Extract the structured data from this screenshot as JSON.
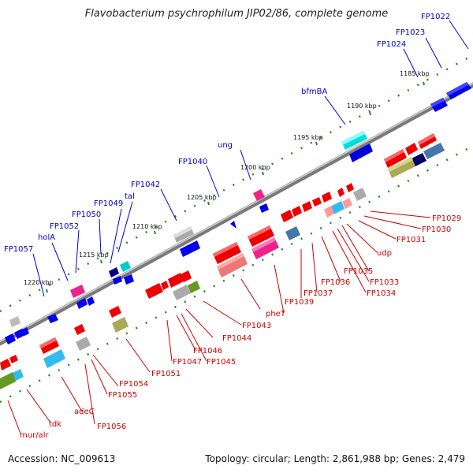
{
  "title": "Flavobacterium psychrophilum JIP02/86, complete genome",
  "footer": {
    "accession": "Accession: NC_009613",
    "summary": "Topology: circular; Length: 2,861,988 bp; Genes: 2,479"
  },
  "colors": {
    "top_label": "#0000cc",
    "bottom_label": "#cc0000",
    "backbone": "#808080",
    "tick": "#228b22"
  },
  "scale_ticks": [
    "1185 kbp",
    "1190 kbp",
    "1195 kbp",
    "1200 kbp",
    "1205 kbp",
    "1210 kbp",
    "1215 kbp",
    "1220 kbp"
  ],
  "top_labels": [
    "FP1022",
    "FP1023",
    "FP1024",
    "bfmBA",
    "ung",
    "FP1040",
    "FP1042",
    "tal",
    "FP1049",
    "FP1050",
    "FP1052",
    "holA",
    "FP1057"
  ],
  "bottom_labels": [
    "FP1029",
    "FP1030",
    "FP1031",
    "udp",
    "FP1033",
    "FP1034",
    "FP1035",
    "FP1036",
    "FP1037",
    "FP1039",
    "pheT",
    "FP1043",
    "FP1044",
    "FP1045",
    "FP1046",
    "FP1047",
    "FP1051",
    "FP1054",
    "FP1055",
    "FP1056",
    "adeC",
    "tdk",
    "mur/alr"
  ]
}
